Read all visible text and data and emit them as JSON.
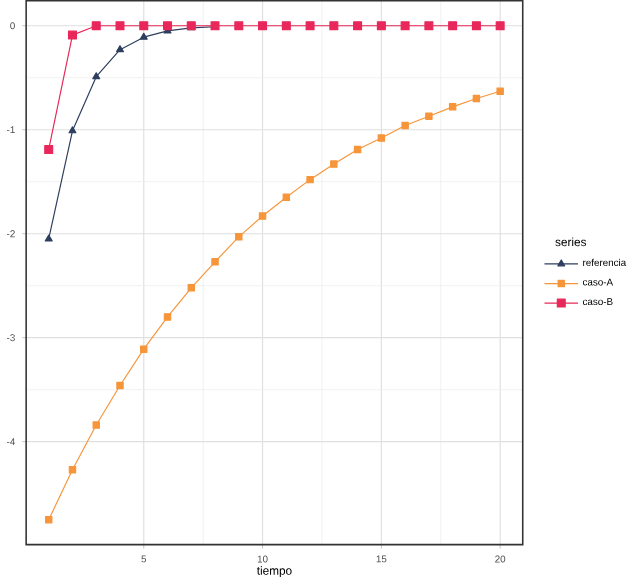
{
  "chart_data": {
    "type": "line",
    "xlabel": "tiempo",
    "legend_title": "series",
    "legend": "right",
    "grid": true,
    "x": [
      1,
      2,
      3,
      4,
      5,
      6,
      7,
      8,
      9,
      10,
      11,
      12,
      13,
      14,
      15,
      16,
      17,
      18,
      19,
      20
    ],
    "xlim": [
      0.05,
      20.95
    ],
    "xticks": [
      5,
      10,
      15,
      20
    ],
    "ylim": [
      -4.99,
      0.24
    ],
    "yticks": [
      -4,
      -3,
      -2,
      -1,
      0
    ],
    "series": [
      {
        "name": "referencia",
        "color": "#2d3e5e",
        "marker": "triangle",
        "values": [
          -2.05,
          -1.01,
          -0.49,
          -0.23,
          -0.11,
          -0.05,
          -0.02,
          -0.01,
          null,
          null,
          null,
          null,
          null,
          null,
          null,
          null,
          null,
          null,
          null,
          null
        ]
      },
      {
        "name": "caso-A",
        "color": "#f7953a",
        "marker": "square",
        "values": [
          -4.75,
          -4.27,
          -3.84,
          -3.46,
          -3.11,
          -2.8,
          -2.52,
          -2.27,
          -2.03,
          -1.83,
          -1.65,
          -1.48,
          -1.33,
          -1.19,
          -1.08,
          -0.96,
          -0.87,
          -0.78,
          -0.7,
          -0.63
        ]
      },
      {
        "name": "caso-B",
        "color": "#e8285a",
        "marker": "square",
        "values": [
          -1.19,
          -0.09,
          0,
          0,
          0,
          0,
          0,
          0,
          0,
          0,
          0,
          0,
          0,
          0,
          0,
          0,
          0,
          0,
          0,
          0
        ]
      }
    ]
  }
}
